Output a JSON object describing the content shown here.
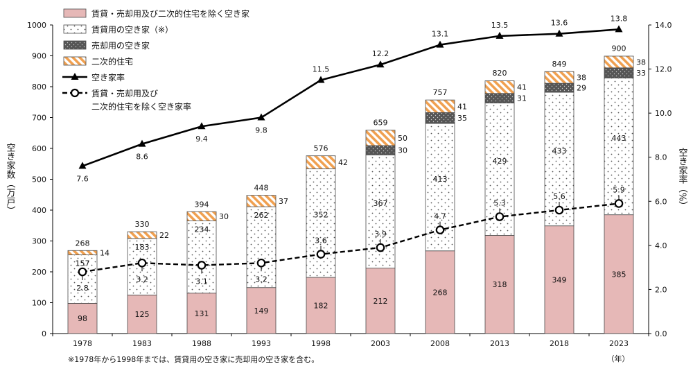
{
  "chart_data": {
    "type": "bar",
    "title": "",
    "categories": [
      "1978",
      "1983",
      "1988",
      "1993",
      "1998",
      "2003",
      "2008",
      "2013",
      "2018",
      "2023"
    ],
    "series": [
      {
        "name": "賃貸・売却用及び二次的住宅を除く空き家",
        "kind": "bar",
        "color": "#e6b8b7",
        "values": [
          98,
          125,
          131,
          149,
          182,
          212,
          268,
          318,
          349,
          385
        ]
      },
      {
        "name": "賃貸用の空き家（※）",
        "kind": "bar",
        "color": "#ffffff",
        "values": [
          157,
          183,
          234,
          262,
          352,
          367,
          413,
          429,
          433,
          443
        ]
      },
      {
        "name": "売却用の空き家",
        "kind": "bar",
        "color": "#595959",
        "values": [
          null,
          null,
          null,
          null,
          null,
          30,
          35,
          31,
          29,
          33
        ]
      },
      {
        "name": "二次的住宅",
        "kind": "bar",
        "color": "#f2a65a",
        "values": [
          14,
          22,
          30,
          37,
          42,
          50,
          41,
          41,
          38,
          38
        ]
      },
      {
        "name": "空き家率",
        "kind": "line",
        "axis": "right",
        "color": "#000000",
        "values": [
          7.6,
          8.6,
          9.4,
          9.8,
          11.5,
          12.2,
          13.1,
          13.5,
          13.6,
          13.8
        ]
      },
      {
        "name": "賃貸・売却用及び二次的住宅を除く空き家率",
        "name_lines": [
          "賃貸・売却用及び",
          "二次的住宅を除く空き家率"
        ],
        "kind": "line",
        "axis": "right",
        "style": "dashed",
        "color": "#000000",
        "values": [
          2.8,
          3.2,
          3.1,
          3.2,
          3.6,
          3.9,
          4.7,
          5.3,
          5.6,
          5.9
        ]
      }
    ],
    "totals": [
      268,
      330,
      394,
      448,
      576,
      659,
      757,
      820,
      849,
      900
    ],
    "rate_labels": [
      "7.6",
      "8.6",
      "9.4",
      "9.8",
      "11.5",
      "12.2",
      "13.1",
      "13.5",
      "13.6",
      "13.8"
    ],
    "rate2_labels": [
      "2.8",
      "3.2",
      "3.1",
      "3.2",
      "3.6",
      "3.9",
      "4.7",
      "5.3",
      "5.6",
      "5.9"
    ],
    "ylabel": "空き家数（万戸）",
    "ylabel_right": "空き家率（%）",
    "xlabel": "（年）",
    "ylim": [
      0,
      1000
    ],
    "ylim_right": [
      0,
      14
    ],
    "yticks": [
      "0",
      "100",
      "200",
      "300",
      "400",
      "500",
      "600",
      "700",
      "800",
      "900",
      "1000"
    ],
    "yticks_right": [
      "0.0",
      "2.0",
      "4.0",
      "6.0",
      "8.0",
      "10.0",
      "12.0",
      "14.0"
    ],
    "legend_position": "top-left",
    "grid": false,
    "note": "※1978年から1998年までは、賃貸用の空き家に売却用の空き家を含む。"
  }
}
